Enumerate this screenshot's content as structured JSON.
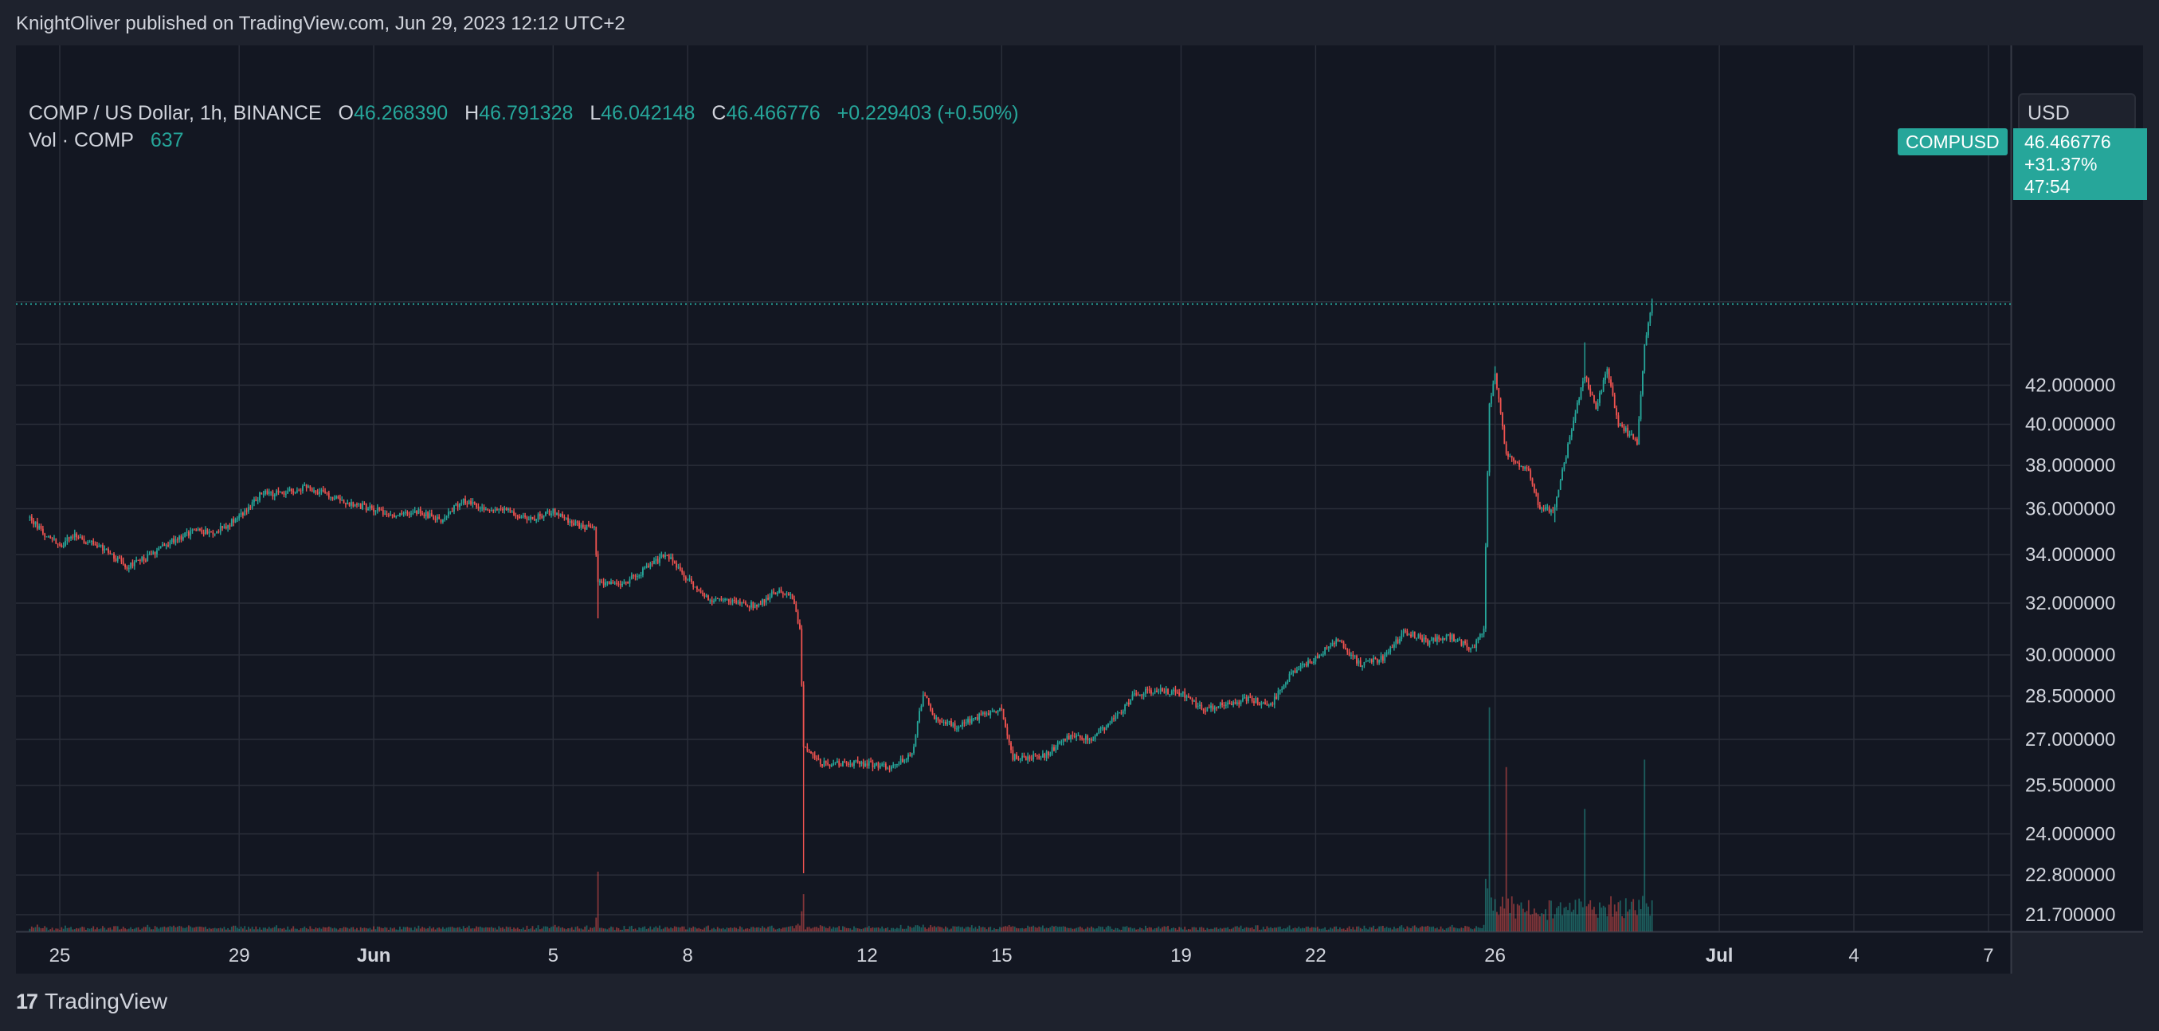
{
  "header": {
    "publisher_line": "KnightOliver published on TradingView.com, Jun 29, 2023 12:12 UTC+2"
  },
  "legend": {
    "symbol": "COMP / US Dollar, 1h, BINANCE",
    "open_label": "O",
    "open": "46.268390",
    "high_label": "H",
    "high": "46.791328",
    "low_label": "L",
    "low": "46.042148",
    "close_label": "C",
    "close": "46.466776",
    "change": "+0.229403 (+0.50%)",
    "volume_label": "Vol · COMP",
    "volume": "637"
  },
  "currency_selector": "USD",
  "last_price_tag": {
    "symbol": "COMPUSD",
    "price": "46.466776",
    "change_pct": "+31.37%",
    "countdown": "47:54"
  },
  "footer": {
    "brand": "TradingView",
    "logo_glyph": "17"
  },
  "colors": {
    "up": "#26a69a",
    "down": "#ef5350",
    "background": "#131722",
    "frame": "#1e222d",
    "grid": "#2a2e39",
    "text": "#d1d4dc"
  },
  "chart_data": {
    "type": "candlestick",
    "symbol": "COMPUSD",
    "interval": "1h",
    "scale": "log",
    "grid": true,
    "y_ticks": [
      21.7,
      22.8,
      24.0,
      25.5,
      27.0,
      28.5,
      30.0,
      32.0,
      34.0,
      36.0,
      38.0,
      40.0,
      42.0
    ],
    "y_tick_labels": [
      "21.700000",
      "22.800000",
      "24.000000",
      "25.500000",
      "27.000000",
      "28.500000",
      "30.000000",
      "32.000000",
      "34.000000",
      "36.000000",
      "38.000000",
      "40.000000",
      "42.000000"
    ],
    "x_ticks": [
      {
        "date": "2023-05-25",
        "label": "25"
      },
      {
        "date": "2023-05-29",
        "label": "29"
      },
      {
        "date": "2023-06-01",
        "label": "Jun"
      },
      {
        "date": "2023-06-05",
        "label": "5"
      },
      {
        "date": "2023-06-08",
        "label": "8"
      },
      {
        "date": "2023-06-12",
        "label": "12"
      },
      {
        "date": "2023-06-15",
        "label": "15"
      },
      {
        "date": "2023-06-19",
        "label": "19"
      },
      {
        "date": "2023-06-22",
        "label": "22"
      },
      {
        "date": "2023-06-26",
        "label": "26"
      },
      {
        "date": "2023-07-01",
        "label": "Jul"
      },
      {
        "date": "2023-07-04",
        "label": "4"
      },
      {
        "date": "2023-07-07",
        "label": "7"
      }
    ],
    "last_price": 46.466776,
    "price_path": [
      [
        "2023-05-24 08:00",
        35.6
      ],
      [
        "2023-05-24 16:00",
        34.9
      ],
      [
        "2023-05-25 00:00",
        34.4
      ],
      [
        "2023-05-25 08:00",
        34.8
      ],
      [
        "2023-05-25 16:00",
        34.5
      ],
      [
        "2023-05-26 00:00",
        34.2
      ],
      [
        "2023-05-26 12:00",
        33.5
      ],
      [
        "2023-05-27 00:00",
        33.9
      ],
      [
        "2023-05-27 12:00",
        34.6
      ],
      [
        "2023-05-28 00:00",
        35.0
      ],
      [
        "2023-05-28 12:00",
        35.0
      ],
      [
        "2023-05-29 00:00",
        35.6
      ],
      [
        "2023-05-29 12:00",
        36.7
      ],
      [
        "2023-05-30 00:00",
        36.7
      ],
      [
        "2023-05-30 12:00",
        37.0
      ],
      [
        "2023-05-31 00:00",
        36.6
      ],
      [
        "2023-05-31 12:00",
        36.2
      ],
      [
        "2023-06-01 00:00",
        36.0
      ],
      [
        "2023-06-01 12:00",
        35.7
      ],
      [
        "2023-06-02 00:00",
        35.9
      ],
      [
        "2023-06-02 12:00",
        35.5
      ],
      [
        "2023-06-03 00:00",
        36.4
      ],
      [
        "2023-06-03 12:00",
        35.9
      ],
      [
        "2023-06-04 00:00",
        35.9
      ],
      [
        "2023-06-04 12:00",
        35.5
      ],
      [
        "2023-06-05 00:00",
        35.9
      ],
      [
        "2023-06-05 08:00",
        35.4
      ],
      [
        "2023-06-05 16:00",
        35.2
      ],
      [
        "2023-06-05 22:00",
        35.2
      ],
      [
        "2023-06-06 00:00",
        32.8
      ],
      [
        "2023-06-06 12:00",
        32.7
      ],
      [
        "2023-06-07 00:00",
        33.3
      ],
      [
        "2023-06-07 12:00",
        34.0
      ],
      [
        "2023-06-08 00:00",
        33.0
      ],
      [
        "2023-06-08 12:00",
        32.1
      ],
      [
        "2023-06-09 00:00",
        32.1
      ],
      [
        "2023-06-09 12:00",
        31.9
      ],
      [
        "2023-06-10 00:00",
        32.5
      ],
      [
        "2023-06-10 08:00",
        32.2
      ],
      [
        "2023-06-10 12:00",
        31.0
      ],
      [
        "2023-06-10 14:00",
        26.8
      ],
      [
        "2023-06-10 16:00",
        26.7
      ],
      [
        "2023-06-11 00:00",
        26.2
      ],
      [
        "2023-06-11 12:00",
        26.2
      ],
      [
        "2023-06-12 00:00",
        26.2
      ],
      [
        "2023-06-12 12:00",
        26.1
      ],
      [
        "2023-06-13 00:00",
        26.5
      ],
      [
        "2023-06-13 06:00",
        28.6
      ],
      [
        "2023-06-13 12:00",
        27.8
      ],
      [
        "2023-06-14 00:00",
        27.4
      ],
      [
        "2023-06-14 12:00",
        27.8
      ],
      [
        "2023-06-15 00:00",
        28.0
      ],
      [
        "2023-06-15 06:00",
        26.4
      ],
      [
        "2023-06-15 12:00",
        26.4
      ],
      [
        "2023-06-16 00:00",
        26.5
      ],
      [
        "2023-06-16 12:00",
        27.1
      ],
      [
        "2023-06-17 00:00",
        27.0
      ],
      [
        "2023-06-17 12:00",
        27.7
      ],
      [
        "2023-06-18 00:00",
        28.6
      ],
      [
        "2023-06-18 12:00",
        28.7
      ],
      [
        "2023-06-19 00:00",
        28.6
      ],
      [
        "2023-06-19 12:00",
        28.0
      ],
      [
        "2023-06-20 00:00",
        28.2
      ],
      [
        "2023-06-20 12:00",
        28.4
      ],
      [
        "2023-06-21 00:00",
        28.2
      ],
      [
        "2023-06-21 12:00",
        29.4
      ],
      [
        "2023-06-22 00:00",
        29.9
      ],
      [
        "2023-06-22 12:00",
        30.6
      ],
      [
        "2023-06-23 00:00",
        29.6
      ],
      [
        "2023-06-23 12:00",
        29.9
      ],
      [
        "2023-06-24 00:00",
        30.9
      ],
      [
        "2023-06-24 12:00",
        30.5
      ],
      [
        "2023-06-25 00:00",
        30.7
      ],
      [
        "2023-06-25 12:00",
        30.2
      ],
      [
        "2023-06-25 18:00",
        31.0
      ],
      [
        "2023-06-25 21:00",
        41.0
      ],
      [
        "2023-06-26 00:00",
        42.5
      ],
      [
        "2023-06-26 06:00",
        38.5
      ],
      [
        "2023-06-26 18:00",
        37.8
      ],
      [
        "2023-06-27 00:00",
        36.0
      ],
      [
        "2023-06-27 08:00",
        36.0
      ],
      [
        "2023-06-27 14:00",
        38.5
      ],
      [
        "2023-06-27 20:00",
        41.0
      ],
      [
        "2023-06-28 00:00",
        42.5
      ],
      [
        "2023-06-28 06:00",
        40.8
      ],
      [
        "2023-06-28 12:00",
        42.8
      ],
      [
        "2023-06-28 18:00",
        40.0
      ],
      [
        "2023-06-29 00:00",
        39.5
      ],
      [
        "2023-06-29 04:00",
        39.0
      ],
      [
        "2023-06-29 08:00",
        44.0
      ],
      [
        "2023-06-29 12:00",
        46.466776
      ]
    ],
    "notable_extremes": [
      {
        "date": "2023-06-06 00:00",
        "low": 31.4
      },
      {
        "date": "2023-06-10 14:00",
        "low": 22.85
      },
      {
        "date": "2023-06-26 00:00",
        "high": 43.0
      },
      {
        "date": "2023-06-27 08:00",
        "low": 35.4
      },
      {
        "date": "2023-06-28 00:00",
        "high": 44.3
      },
      {
        "date": "2023-06-29 12:00",
        "high": 46.791328
      }
    ],
    "volume_spikes": [
      {
        "date": "2023-06-06 00:00",
        "volume": 40000
      },
      {
        "date": "2023-06-10 14:00",
        "volume": 25000
      },
      {
        "date": "2023-06-25 21:00",
        "volume": 150000
      },
      {
        "date": "2023-06-26 06:00",
        "volume": 110000
      },
      {
        "date": "2023-06-28 00:00",
        "volume": 82000
      },
      {
        "date": "2023-06-29 08:00",
        "volume": 115000
      }
    ]
  }
}
